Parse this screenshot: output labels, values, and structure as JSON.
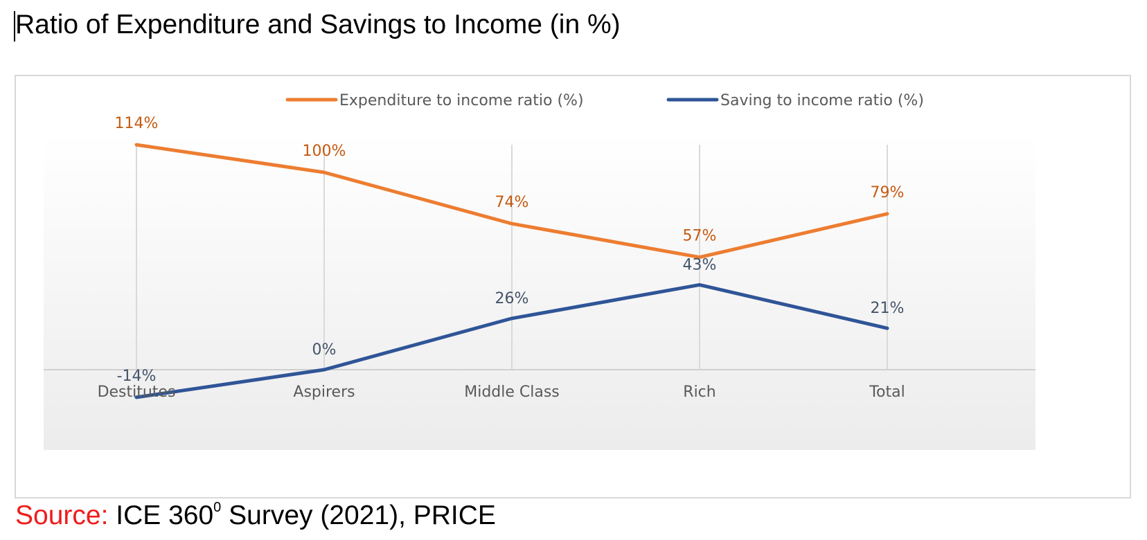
{
  "title": "Ratio of Expenditure and Savings to Income (in %)",
  "source": {
    "label": "Source:",
    "text_before": " ICE 360",
    "sup": "0",
    "text_after": " Survey (2021), PRICE"
  },
  "chart_data": {
    "type": "line",
    "categories": [
      "Destitutes",
      "Aspirers",
      "Middle  Class",
      "Rich",
      "Total"
    ],
    "series": [
      {
        "name": "Expenditure to income ratio (%)",
        "color": "#ed7d31",
        "values": [
          114,
          100,
          74,
          57,
          79
        ],
        "labels": [
          "114%",
          "100%",
          "74%",
          "57%",
          "79%"
        ]
      },
      {
        "name": "Saving to income ratio (%)",
        "color": "#2f5597",
        "values": [
          -14,
          0,
          26,
          43,
          21
        ],
        "labels": [
          "-14%",
          "0%",
          "26%",
          "43%",
          "21%"
        ]
      }
    ],
    "legend": "top",
    "grid": "vertical"
  }
}
